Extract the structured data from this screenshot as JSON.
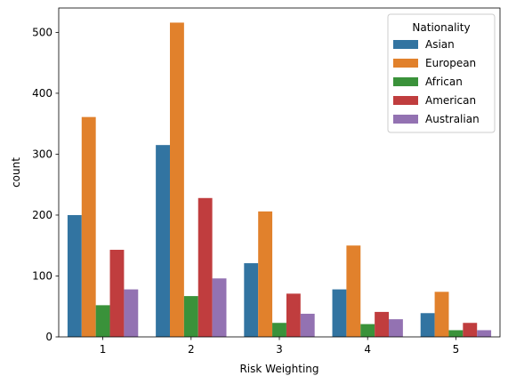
{
  "chart_data": {
    "type": "bar",
    "title": "",
    "xlabel": "Risk Weighting",
    "ylabel": "count",
    "categories": [
      "1",
      "2",
      "3",
      "4",
      "5"
    ],
    "ylim": [
      0,
      540
    ],
    "yticks": [
      0,
      100,
      200,
      300,
      400,
      500
    ],
    "grid": false,
    "legend": {
      "title": "Nationality",
      "position": "top-right"
    },
    "series": [
      {
        "name": "Asian",
        "color": "#3274a1",
        "values": [
          200,
          315,
          121,
          78,
          39
        ]
      },
      {
        "name": "European",
        "color": "#e1812c",
        "values": [
          361,
          516,
          206,
          150,
          74
        ]
      },
      {
        "name": "African",
        "color": "#3a923a",
        "values": [
          52,
          67,
          23,
          21,
          11
        ]
      },
      {
        "name": "American",
        "color": "#c03d3e",
        "values": [
          143,
          228,
          71,
          41,
          23
        ]
      },
      {
        "name": "Australian",
        "color": "#9372b2",
        "values": [
          78,
          96,
          38,
          29,
          11
        ]
      }
    ]
  }
}
